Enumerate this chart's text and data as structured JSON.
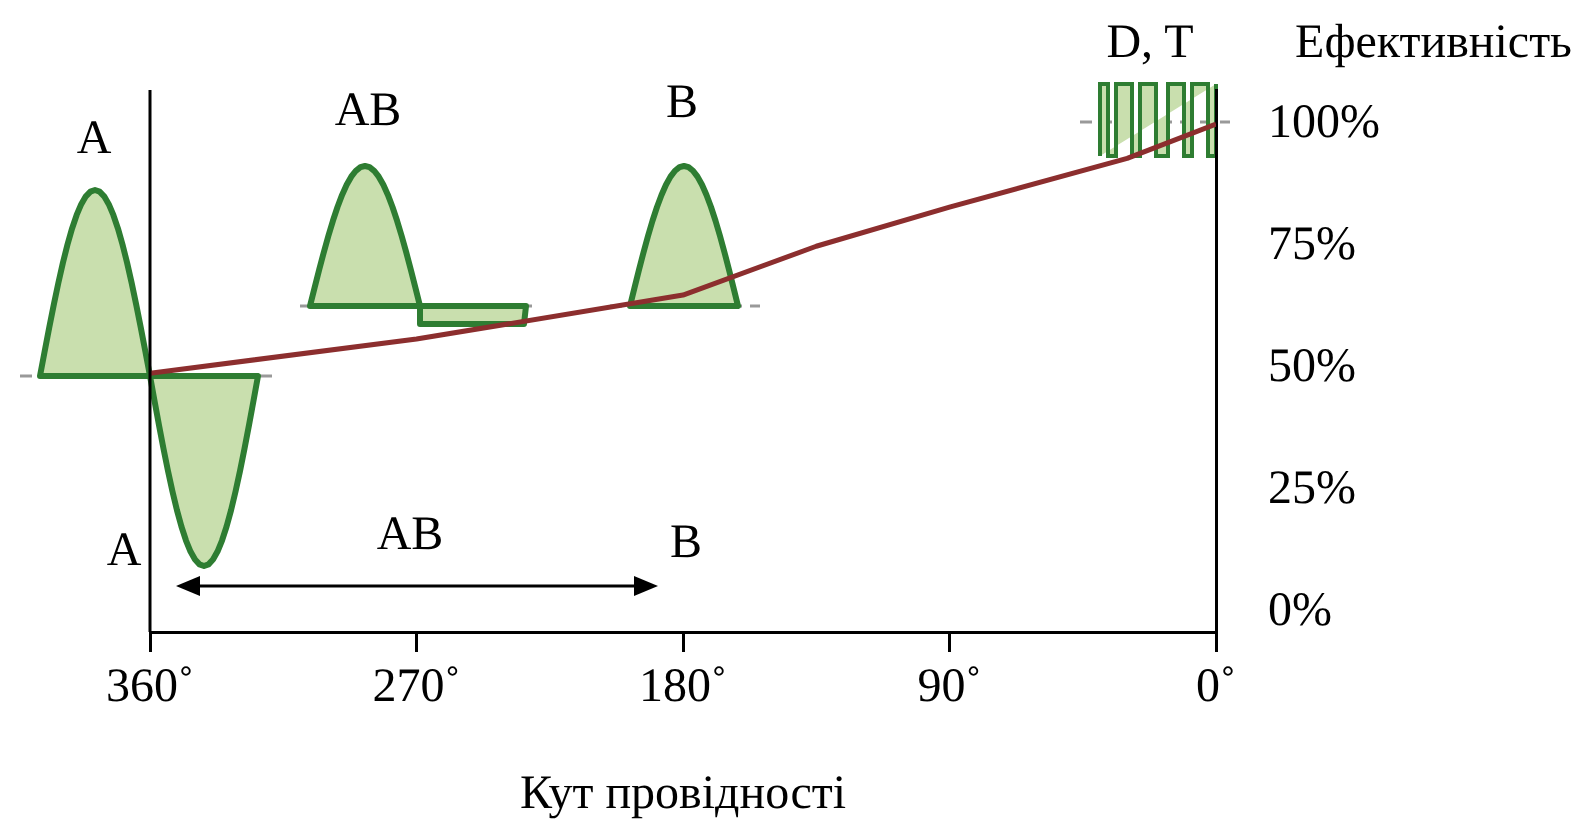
{
  "chart_data": {
    "type": "line",
    "xlabel": "Кут провідності",
    "ylabel": "Ефективність",
    "x": [
      360,
      270,
      180,
      135,
      90,
      30,
      0
    ],
    "series": [
      {
        "color": "#8c2e2e",
        "values": [
          49,
          56,
          65,
          75,
          83,
          93,
          100
        ]
      }
    ],
    "xlim": [
      360,
      0
    ],
    "xticks": [
      {
        "value": 360,
        "label": "360˚"
      },
      {
        "value": 270,
        "label": "270˚"
      },
      {
        "value": 180,
        "label": "180˚"
      },
      {
        "value": 90,
        "label": "90˚"
      },
      {
        "value": 0,
        "label": "0˚"
      }
    ],
    "ylim": [
      -4,
      107
    ],
    "yticks": [
      {
        "value": 0,
        "label": "0%"
      },
      {
        "value": 25,
        "label": "25%"
      },
      {
        "value": 50,
        "label": "50%"
      },
      {
        "value": 75,
        "label": "75%"
      },
      {
        "value": 100,
        "label": "100%"
      }
    ],
    "annotations": [
      "A",
      "AB",
      "B",
      "D, T",
      "A",
      "AB",
      "B"
    ],
    "grid": false,
    "legend": false,
    "marker": "none",
    "line_style": "solid"
  }
}
